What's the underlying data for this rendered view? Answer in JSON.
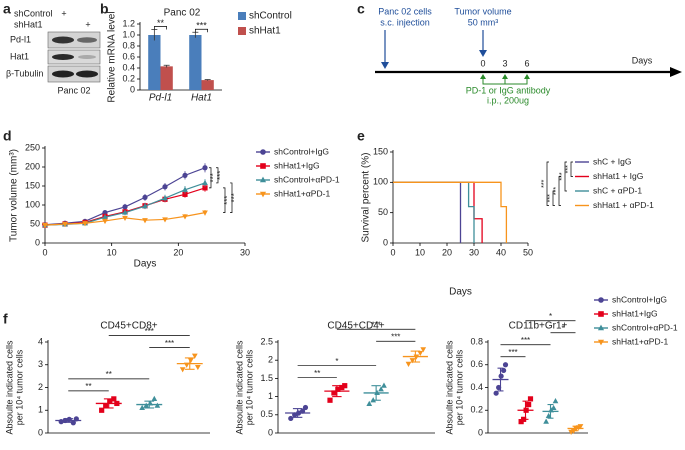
{
  "panel_labels": [
    "a",
    "b",
    "c",
    "d",
    "e",
    "f"
  ],
  "blot": {
    "header": [
      "shControl",
      "shHat1"
    ],
    "signs": [
      "+",
      "+"
    ],
    "rows": [
      "Pd-l1",
      "Hat1",
      "β-Tubulin"
    ],
    "caption": "Panc 02"
  },
  "timeline": {
    "injection": [
      "Panc 02 cells",
      "s.c. injection"
    ],
    "tumor": [
      "Tumor volume",
      "50 mm³"
    ],
    "ticks": [
      0,
      3,
      6
    ],
    "axis_label": "Days",
    "treatment": [
      "PD-1 or IgG antibody",
      "i.p., 200ug"
    ]
  },
  "chart_data": [
    {
      "type": "bar",
      "title": "Panc 02",
      "y_label": "Relative mRNA level",
      "categories": [
        "Pd-l1",
        "Hat1"
      ],
      "series": [
        {
          "name": "shControl",
          "color": "#4a7ebb",
          "values": [
            1.0,
            1.0
          ],
          "errors": [
            0.1,
            0.05
          ]
        },
        {
          "name": "shHat1",
          "color": "#c0504d",
          "values": [
            0.43,
            0.18
          ],
          "errors": [
            0.02,
            0.01
          ]
        }
      ],
      "ylim": [
        0,
        1.2
      ],
      "yticks": [
        0,
        0.2,
        0.4,
        0.6,
        0.8,
        {
          "value": 1,
          "label": "1.0"
        },
        1.2
      ],
      "annotations": [
        "**",
        "***"
      ],
      "legend": "right"
    },
    {
      "type": "line",
      "y_label": "Tumor volume (mm³)",
      "x_label": "Days",
      "x": [
        0,
        3,
        6,
        9,
        12,
        15,
        18,
        21,
        24
      ],
      "series": [
        {
          "name": "shControl+IgG",
          "color": "#4c4494",
          "marker": "circle",
          "values": [
            48,
            52,
            57,
            80,
            95,
            120,
            148,
            178,
            198
          ],
          "errors": [
            3,
            4,
            5,
            7,
            8,
            9,
            10,
            11,
            12
          ]
        },
        {
          "name": "shHat1+IgG",
          "color": "#e3001b",
          "marker": "square",
          "values": [
            47,
            50,
            54,
            70,
            82,
            98,
            115,
            128,
            145
          ],
          "errors": [
            3,
            3,
            4,
            6,
            7,
            8,
            8,
            9,
            10
          ]
        },
        {
          "name": "shControl+αPD-1",
          "color": "#3f8f9a",
          "marker": "triangle",
          "values": [
            47,
            49,
            52,
            68,
            80,
            97,
            118,
            140,
            158
          ],
          "errors": [
            3,
            3,
            4,
            6,
            7,
            8,
            9,
            10,
            10
          ]
        },
        {
          "name": "shHat1+αPD-1",
          "color": "#f7941d",
          "marker": "triangle-down",
          "values": [
            47,
            50,
            52,
            58,
            66,
            60,
            62,
            70,
            80
          ],
          "errors": [
            3,
            3,
            3,
            4,
            5,
            4,
            5,
            6,
            7
          ]
        }
      ],
      "xlim": [
        0,
        30
      ],
      "xticks": [
        0,
        10,
        20,
        30
      ],
      "ylim": [
        0,
        250
      ],
      "yticks": [
        0,
        50,
        100,
        150,
        200,
        250
      ],
      "comparisons": [
        {
          "series": [
            0,
            1
          ],
          "label": "***"
        },
        {
          "series": [
            0,
            2
          ],
          "label": "***"
        },
        {
          "series": [
            1,
            3
          ],
          "label": "***"
        },
        {
          "series": [
            2,
            3
          ],
          "label": "***"
        }
      ],
      "legend": "right"
    },
    {
      "type": "step",
      "y_label": "Survival percent (%)",
      "x_label": "Days",
      "series": [
        {
          "name": "shC + IgG",
          "color": "#4c4494",
          "x": [
            0,
            25
          ],
          "values": [
            100,
            0
          ]
        },
        {
          "name": "shHat1 + IgG",
          "color": "#e3001b",
          "x": [
            0,
            30,
            33
          ],
          "values": [
            100,
            40,
            0
          ]
        },
        {
          "name": "shC + αPD-1",
          "color": "#3f8f9a",
          "x": [
            0,
            28,
            30
          ],
          "values": [
            100,
            60,
            0
          ]
        },
        {
          "name": "shHat1 + αPD-1",
          "color": "#f7941d",
          "x": [
            0,
            40,
            42
          ],
          "values": [
            100,
            60,
            0
          ]
        }
      ],
      "xlim": [
        0,
        50
      ],
      "xticks": [
        0,
        10,
        20,
        30,
        40,
        50
      ],
      "ylim": [
        0,
        150
      ],
      "yticks": [
        0,
        50,
        100,
        150
      ],
      "comparisons": [
        {
          "series": [
            0,
            1
          ],
          "label": "***"
        },
        {
          "series": [
            0,
            2
          ],
          "label": "***"
        },
        {
          "series": [
            1,
            3
          ],
          "label": "***"
        },
        {
          "series": [
            2,
            3
          ],
          "label": "***"
        },
        {
          "series": [
            0,
            3
          ],
          "label": "***"
        }
      ],
      "legend": "right"
    },
    {
      "type": "dot",
      "title": "CD45+CD8+",
      "y_label": [
        "Absoulte indicated cells",
        "per 10⁴ tumor cells"
      ],
      "series": [
        {
          "color": "#4c4494",
          "marker": "circle",
          "values": [
            0.5,
            0.55,
            0.6,
            0.45,
            0.62
          ],
          "mean": 0.55,
          "sd": 0.08
        },
        {
          "color": "#e3001b",
          "marker": "square",
          "values": [
            1.0,
            1.2,
            1.4,
            1.5,
            1.3
          ],
          "mean": 1.3,
          "sd": 0.2
        },
        {
          "color": "#3f8f9a",
          "marker": "triangle",
          "values": [
            1.1,
            1.2,
            1.3,
            1.5,
            1.2
          ],
          "mean": 1.25,
          "sd": 0.15
        },
        {
          "color": "#f7941d",
          "marker": "triangle-down",
          "values": [
            2.8,
            3.0,
            3.2,
            3.4,
            2.9
          ],
          "mean": 3.05,
          "sd": 0.25
        }
      ],
      "ylim": [
        0,
        4
      ],
      "yticks": [
        0,
        1,
        2,
        3,
        4
      ],
      "comparisons": [
        {
          "groups": [
            0,
            1
          ],
          "label": "**"
        },
        {
          "groups": [
            0,
            2
          ],
          "label": "**"
        },
        {
          "groups": [
            2,
            3
          ],
          "label": "***"
        },
        {
          "groups": [
            1,
            3
          ],
          "label": "***"
        }
      ]
    },
    {
      "type": "dot",
      "title": "CD45+CD4+",
      "y_label": [
        "Absoulte indicated cells",
        "per 10⁴ tumor cells"
      ],
      "series": [
        {
          "color": "#4c4494",
          "marker": "circle",
          "values": [
            0.4,
            0.5,
            0.55,
            0.6,
            0.7
          ],
          "mean": 0.55,
          "sd": 0.12
        },
        {
          "color": "#e3001b",
          "marker": "square",
          "values": [
            0.9,
            1.1,
            1.2,
            1.25,
            1.3
          ],
          "mean": 1.15,
          "sd": 0.15
        },
        {
          "color": "#3f8f9a",
          "marker": "triangle",
          "values": [
            0.8,
            0.9,
            1.1,
            1.2,
            1.3
          ],
          "mean": 1.1,
          "sd": 0.2
        },
        {
          "color": "#f7941d",
          "marker": "triangle-down",
          "values": [
            1.9,
            2.0,
            2.1,
            2.2,
            2.3
          ],
          "mean": 2.1,
          "sd": 0.15
        }
      ],
      "ylim": [
        0,
        2.5
      ],
      "yticks": [
        0,
        0.5,
        1,
        1.5,
        2,
        2.5
      ],
      "comparisons": [
        {
          "groups": [
            0,
            1
          ],
          "label": "**"
        },
        {
          "groups": [
            0,
            2
          ],
          "label": "*"
        },
        {
          "groups": [
            2,
            3
          ],
          "label": "***"
        },
        {
          "groups": [
            1,
            3
          ],
          "label": "***"
        }
      ]
    },
    {
      "type": "dot",
      "title": "CD11b+Gr1+",
      "y_label": [
        "Absoulte indicated cells",
        "per 10⁴ tumor cells"
      ],
      "series": [
        {
          "name": "shControl+IgG",
          "color": "#4c4494",
          "marker": "circle",
          "values": [
            0.35,
            0.4,
            0.5,
            0.55,
            0.6
          ],
          "mean": 0.47,
          "sd": 0.1
        },
        {
          "name": "shHat1+IgG",
          "color": "#e3001b",
          "marker": "square",
          "values": [
            0.1,
            0.12,
            0.2,
            0.25,
            0.3
          ],
          "mean": 0.2,
          "sd": 0.08
        },
        {
          "name": "shControl+αPD-1",
          "color": "#3f8f9a",
          "marker": "triangle",
          "values": [
            0.1,
            0.15,
            0.2,
            0.22,
            0.28
          ],
          "mean": 0.19,
          "sd": 0.06
        },
        {
          "name": "shHat1+αPD-1",
          "color": "#f7941d",
          "marker": "triangle-down",
          "values": [
            0.01,
            0.02,
            0.04,
            0.05,
            0.06
          ],
          "mean": 0.04,
          "sd": 0.02
        }
      ],
      "ylim": [
        0,
        0.8
      ],
      "yticks": [
        0,
        0.2,
        0.4,
        0.6,
        0.8
      ],
      "comparisons": [
        {
          "groups": [
            0,
            1
          ],
          "label": "***"
        },
        {
          "groups": [
            0,
            2
          ],
          "label": "***"
        },
        {
          "groups": [
            2,
            3
          ],
          "label": "*"
        },
        {
          "groups": [
            1,
            3
          ],
          "label": "*"
        }
      ],
      "legend": "right"
    }
  ]
}
